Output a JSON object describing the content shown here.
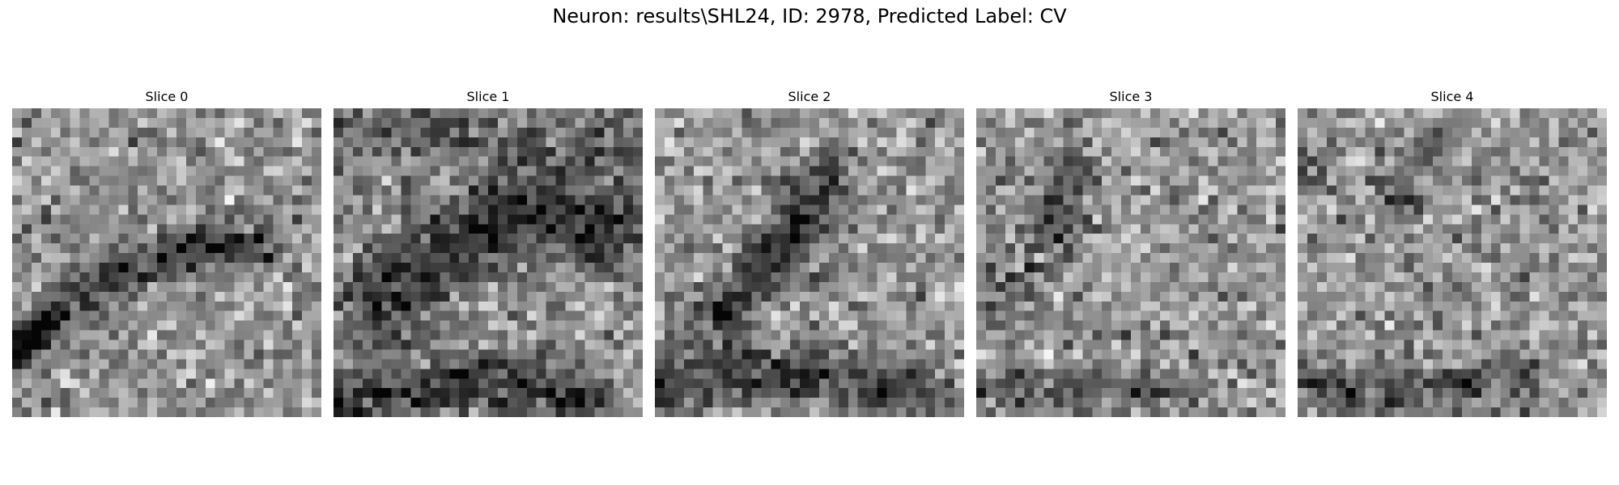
{
  "figure": {
    "title": "Neuron: results\\SHL24, ID: 2978, Predicted Label: CV",
    "colormap": "gray",
    "grid_size": 32
  },
  "slices": [
    {
      "title": "Slice 0",
      "dark_structures": [
        {
          "kind": "band",
          "points": [
            [
              0.02,
              0.8
            ],
            [
              0.15,
              0.66
            ],
            [
              0.3,
              0.54
            ],
            [
              0.45,
              0.5
            ],
            [
              0.62,
              0.45
            ],
            [
              0.8,
              0.44
            ]
          ],
          "width": 0.07,
          "depth": 95
        },
        {
          "kind": "band",
          "points": [
            [
              0.0,
              0.76
            ],
            [
              0.1,
              0.7
            ]
          ],
          "width": 0.06,
          "depth": 70
        }
      ]
    },
    {
      "title": "Slice 1",
      "dark_structures": [
        {
          "kind": "band",
          "points": [
            [
              0.15,
              0.62
            ],
            [
              0.3,
              0.48
            ],
            [
              0.48,
              0.4
            ],
            [
              0.65,
              0.33
            ],
            [
              0.88,
              0.38
            ]
          ],
          "width": 0.16,
          "depth": 105
        },
        {
          "kind": "band",
          "points": [
            [
              0.0,
              0.96
            ],
            [
              0.25,
              0.92
            ],
            [
              0.55,
              0.88
            ],
            [
              0.8,
              0.94
            ]
          ],
          "width": 0.11,
          "depth": 95
        },
        {
          "kind": "band",
          "points": [
            [
              0.0,
              0.05
            ],
            [
              0.4,
              0.08
            ],
            [
              0.7,
              0.12
            ],
            [
              1.0,
              0.1
            ]
          ],
          "width": 0.12,
          "depth": 55
        }
      ]
    },
    {
      "title": "Slice 2",
      "dark_structures": [
        {
          "kind": "band",
          "points": [
            [
              0.2,
              0.7
            ],
            [
              0.35,
              0.5
            ],
            [
              0.5,
              0.35
            ],
            [
              0.56,
              0.23
            ]
          ],
          "width": 0.09,
          "depth": 95
        },
        {
          "kind": "band",
          "points": [
            [
              0.0,
              0.9
            ],
            [
              0.25,
              0.86
            ],
            [
              0.55,
              0.87
            ],
            [
              0.85,
              0.92
            ]
          ],
          "width": 0.1,
          "depth": 85
        }
      ]
    },
    {
      "title": "Slice 3",
      "dark_structures": [
        {
          "kind": "band",
          "points": [
            [
              0.25,
              0.4
            ],
            [
              0.28,
              0.3
            ],
            [
              0.32,
              0.2
            ]
          ],
          "width": 0.08,
          "depth": 75
        },
        {
          "kind": "band",
          "points": [
            [
              0.0,
              0.65
            ],
            [
              0.1,
              0.6
            ],
            [
              0.18,
              0.56
            ]
          ],
          "width": 0.07,
          "depth": 65
        },
        {
          "kind": "band",
          "points": [
            [
              0.0,
              0.9
            ],
            [
              0.3,
              0.92
            ],
            [
              0.62,
              0.9
            ]
          ],
          "width": 0.08,
          "depth": 55
        }
      ]
    },
    {
      "title": "Slice 4",
      "dark_structures": [
        {
          "kind": "band",
          "points": [
            [
              0.3,
              0.3
            ],
            [
              0.38,
              0.2
            ],
            [
              0.42,
              0.12
            ]
          ],
          "width": 0.06,
          "depth": 55
        },
        {
          "kind": "band",
          "points": [
            [
              0.0,
              0.16
            ],
            [
              0.05,
              0.2
            ]
          ],
          "width": 0.06,
          "depth": 70
        },
        {
          "kind": "band",
          "points": [
            [
              0.02,
              0.9
            ],
            [
              0.35,
              0.92
            ],
            [
              0.75,
              0.88
            ]
          ],
          "width": 0.08,
          "depth": 65
        }
      ]
    }
  ]
}
